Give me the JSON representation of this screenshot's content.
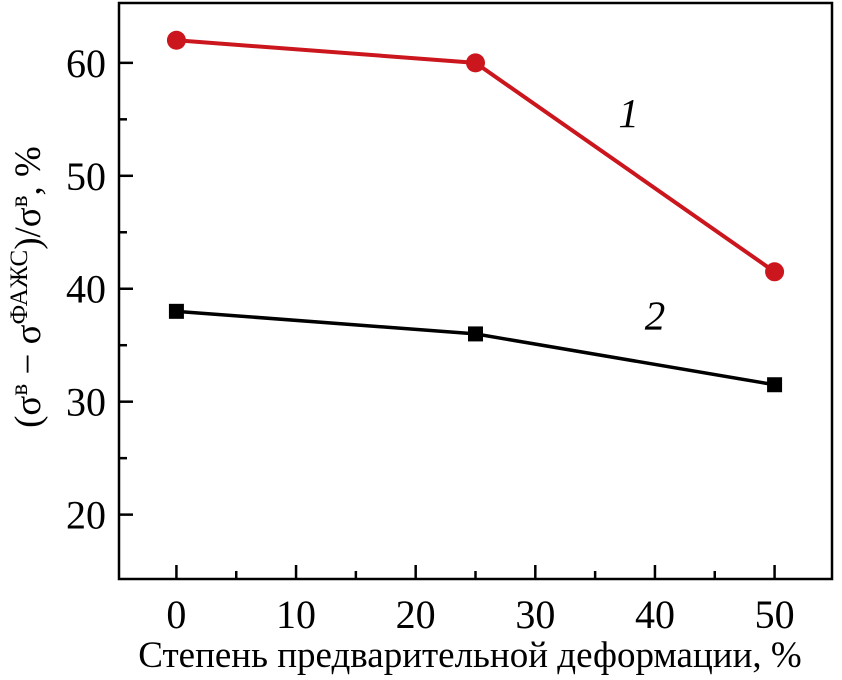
{
  "chart_data": {
    "type": "line",
    "x": [
      0,
      25,
      50
    ],
    "series": [
      {
        "name": "1",
        "values": [
          62,
          60,
          41.5
        ],
        "color": "#CB161E",
        "marker": "circle",
        "marker_size": 19,
        "line_width": 4
      },
      {
        "name": "2",
        "values": [
          38,
          36,
          31.5
        ],
        "color": "#000000",
        "marker": "square",
        "marker_size": 15,
        "line_width": 3.5
      }
    ],
    "annotations": [
      {
        "text": "1",
        "x": 37.8,
        "y": 54.3
      },
      {
        "text": "2",
        "x": 40.0,
        "y": 36.4
      }
    ],
    "title": "",
    "xlabel": "Степень предварительной деформации, %",
    "ylabel": "(σв − σФАЖС)/σв, %",
    "ylabel_parts": [
      {
        "text": "(σ",
        "sup": false
      },
      {
        "text": "в",
        "sup": true
      },
      {
        "text": " − σ",
        "sup": false
      },
      {
        "text": "ФАЖС",
        "sup": true
      },
      {
        "text": ")/σ",
        "sup": false
      },
      {
        "text": "в",
        "sup": true
      },
      {
        "text": ", %",
        "sup": false
      }
    ],
    "xlim": [
      -4.8,
      54.8
    ],
    "ylim": [
      14.3,
      65.3
    ],
    "x_major_ticks": [
      0,
      10,
      20,
      30,
      40,
      50
    ],
    "x_minor_ticks": [
      5,
      15,
      25,
      35,
      45
    ],
    "y_major_ticks": [
      20,
      30,
      40,
      50,
      60
    ],
    "y_minor_ticks": [
      25,
      35,
      45,
      55
    ],
    "grid": false,
    "legend": false,
    "axis_color": "#000000",
    "background_color": "#ffffff"
  }
}
